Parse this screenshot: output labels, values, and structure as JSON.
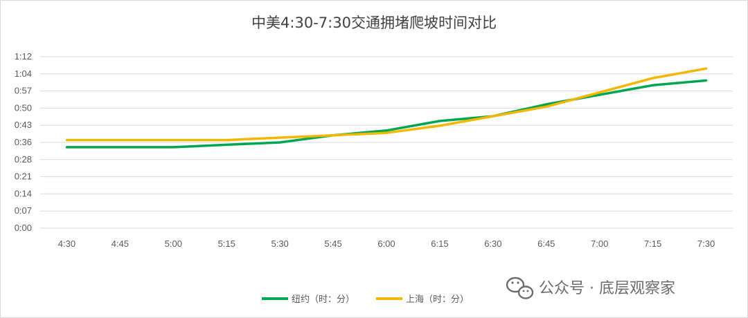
{
  "chart_data": {
    "type": "line",
    "title": "中美4:30-7:30交通拥堵爬坡时间对比",
    "categories": [
      "4:30",
      "4:45",
      "5:00",
      "5:15",
      "5:30",
      "5:45",
      "6:00",
      "6:15",
      "6:30",
      "6:45",
      "7:00",
      "7:15",
      "7:30"
    ],
    "y_ticks": [
      "0:00",
      "0:07",
      "0:14",
      "0:21",
      "0:28",
      "0:36",
      "0:43",
      "0:50",
      "0:57",
      "1:04",
      "1:12"
    ],
    "ylim": [
      0,
      72
    ],
    "grid": true,
    "legend_position": "bottom",
    "series": [
      {
        "name": "纽约（时：分）",
        "color": "#00a550",
        "values": [
          34,
          34,
          34,
          35,
          36,
          39,
          41,
          45,
          47,
          52,
          56,
          60,
          62
        ]
      },
      {
        "name": "上海（时：分）",
        "color": "#f2b700",
        "values": [
          37,
          37,
          37,
          37,
          38,
          39,
          40,
          43,
          47,
          51,
          57,
          63,
          67
        ]
      }
    ]
  },
  "watermark": {
    "text": "公众号 · 底层观察家",
    "icon": "wechat-icon"
  }
}
